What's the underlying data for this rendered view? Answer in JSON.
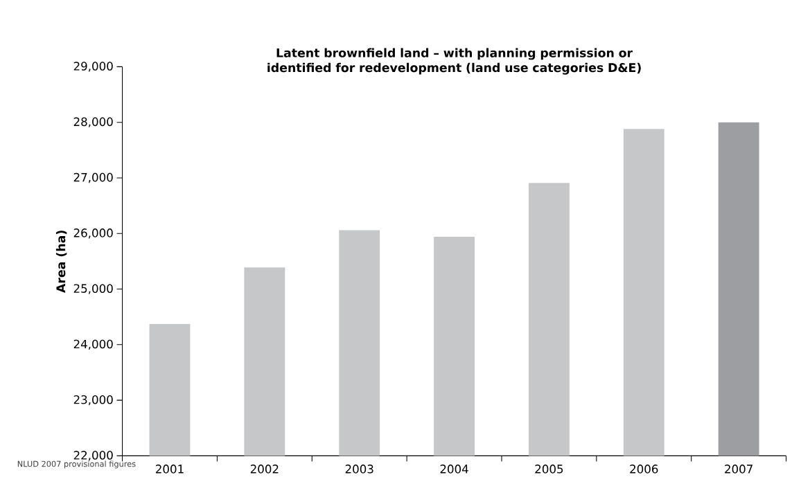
{
  "chart_data": {
    "type": "bar",
    "title": "Latent brownfield land – with planning permission or identified for redevelopment (land use categories D&E)",
    "ylabel": "Area (ha)",
    "categories": [
      "2001",
      "2002",
      "2003",
      "2004",
      "2005",
      "2006",
      "2007"
    ],
    "values": [
      24370,
      25390,
      26060,
      25940,
      26910,
      27880,
      28000
    ],
    "colors": [
      "#c6c7c9",
      "#c6c7c9",
      "#c6c7c9",
      "#c6c7c9",
      "#c6c7c9",
      "#c6c7c9",
      "#9d9ea2"
    ],
    "ylim": [
      22000,
      29000
    ],
    "yticks": [
      {
        "value": 22000,
        "label": "22,000"
      },
      {
        "value": 23000,
        "label": "23,000"
      },
      {
        "value": 24000,
        "label": "24,000"
      },
      {
        "value": 25000,
        "label": "25,000"
      },
      {
        "value": 26000,
        "label": "26,000"
      },
      {
        "value": 27000,
        "label": "27,000"
      },
      {
        "value": 28000,
        "label": "28,000"
      },
      {
        "value": 29000,
        "label": "29,000"
      }
    ],
    "annotations": [
      "NLUD 2007 provisional figures"
    ]
  }
}
